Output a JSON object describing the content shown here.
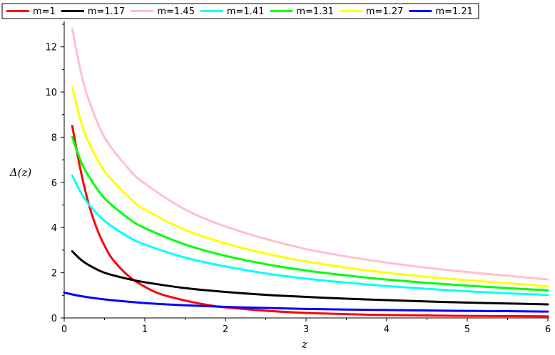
{
  "chart_data": {
    "type": "line",
    "title": "",
    "xlabel": "z",
    "ylabel": "Δ(z)",
    "xlim": [
      0,
      6
    ],
    "ylim": [
      0,
      13
    ],
    "xticks": [
      "0",
      "1",
      "2",
      "3",
      "4",
      "5",
      "6"
    ],
    "yticks": [
      "0",
      "2",
      "4",
      "6",
      "8",
      "10",
      "12"
    ],
    "grid": false,
    "legend_position": "top",
    "series": [
      {
        "name": "m=1",
        "color": "#ff0000",
        "x": [
          0.1,
          0.2,
          0.3,
          0.4,
          0.5,
          0.6,
          0.8,
          1.0,
          1.2,
          1.5,
          1.8,
          2.0,
          2.5,
          3.0,
          3.5,
          4.0,
          5.0,
          6.0
        ],
        "y": [
          8.5,
          6.6,
          5.1,
          4.0,
          3.2,
          2.6,
          1.85,
          1.38,
          1.05,
          0.77,
          0.56,
          0.47,
          0.32,
          0.22,
          0.17,
          0.13,
          0.09,
          0.07
        ]
      },
      {
        "name": "m=1.17",
        "color": "#000000",
        "x": [
          0.1,
          0.2,
          0.3,
          0.5,
          0.8,
          1.0,
          1.5,
          2.0,
          2.5,
          3.0,
          3.5,
          4.0,
          4.5,
          5.0,
          5.5,
          6.0
        ],
        "y": [
          2.95,
          2.6,
          2.35,
          2.0,
          1.72,
          1.58,
          1.32,
          1.15,
          1.02,
          0.93,
          0.85,
          0.79,
          0.73,
          0.68,
          0.64,
          0.6
        ]
      },
      {
        "name": "m=1.45",
        "color": "#ffc0cb",
        "x": [
          0.1,
          0.2,
          0.3,
          0.5,
          0.8,
          1.0,
          1.5,
          2.0,
          2.5,
          3.0,
          3.5,
          4.0,
          4.5,
          5.0,
          5.5,
          6.0
        ],
        "y": [
          12.8,
          11.0,
          9.7,
          8.0,
          6.6,
          5.95,
          4.8,
          4.05,
          3.5,
          3.05,
          2.72,
          2.45,
          2.22,
          2.03,
          1.87,
          1.7
        ]
      },
      {
        "name": "m=1.41",
        "color": "#00ffff",
        "x": [
          0.1,
          0.2,
          0.3,
          0.5,
          0.8,
          1.0,
          1.5,
          2.0,
          2.5,
          3.0,
          3.5,
          4.0,
          4.5,
          5.0,
          5.5,
          6.0
        ],
        "y": [
          6.3,
          5.6,
          5.05,
          4.3,
          3.58,
          3.25,
          2.67,
          2.28,
          1.97,
          1.74,
          1.56,
          1.41,
          1.29,
          1.18,
          1.09,
          1.02
        ]
      },
      {
        "name": "m=1.31",
        "color": "#00ff00",
        "x": [
          0.1,
          0.2,
          0.3,
          0.5,
          0.8,
          1.0,
          1.5,
          2.0,
          2.5,
          3.0,
          3.5,
          4.0,
          4.5,
          5.0,
          5.5,
          6.0
        ],
        "y": [
          8.0,
          7.0,
          6.3,
          5.3,
          4.4,
          3.98,
          3.25,
          2.75,
          2.38,
          2.1,
          1.88,
          1.7,
          1.55,
          1.43,
          1.32,
          1.22
        ]
      },
      {
        "name": "m=1.27",
        "color": "#ffff00",
        "x": [
          0.1,
          0.2,
          0.3,
          0.5,
          0.8,
          1.0,
          1.5,
          2.0,
          2.5,
          3.0,
          3.5,
          4.0,
          4.5,
          5.0,
          5.5,
          6.0
        ],
        "y": [
          10.2,
          8.8,
          7.8,
          6.5,
          5.35,
          4.8,
          3.9,
          3.3,
          2.85,
          2.5,
          2.23,
          2.0,
          1.82,
          1.67,
          1.54,
          1.4
        ]
      },
      {
        "name": "m=1.21",
        "color": "#0000ff",
        "x": [
          0.0,
          0.2,
          0.5,
          1.0,
          1.5,
          2.0,
          2.5,
          3.0,
          3.5,
          4.0,
          4.5,
          5.0,
          5.5,
          6.0
        ],
        "y": [
          1.12,
          0.97,
          0.82,
          0.66,
          0.56,
          0.49,
          0.44,
          0.4,
          0.37,
          0.35,
          0.33,
          0.31,
          0.3,
          0.28
        ]
      }
    ]
  }
}
